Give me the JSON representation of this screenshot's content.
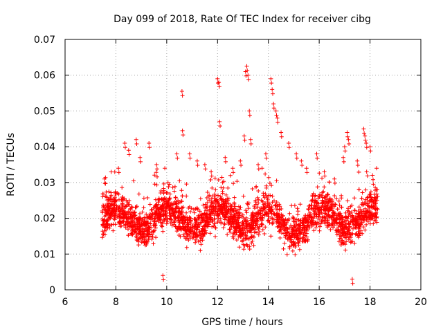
{
  "chart_data": {
    "type": "scatter",
    "title": "Day 099 of 2018, Rate Of TEC Index for receiver cibg",
    "xlabel": "GPS time / hours",
    "ylabel": "ROTI / TECUs",
    "xlim": [
      6,
      20
    ],
    "ylim": [
      0,
      0.07
    ],
    "xticks": [
      "6",
      "8",
      "10",
      "12",
      "14",
      "16",
      "18",
      "20"
    ],
    "yticks": [
      "0",
      "0.01",
      "0.02",
      "0.03",
      "0.04",
      "0.05",
      "0.06",
      "0.07"
    ],
    "grid": true,
    "marker": "+",
    "color": "#ff0000",
    "data_x_range": [
      7.45,
      18.3
    ],
    "typical_band": [
      0.008,
      0.03
    ],
    "notable_points": [
      {
        "x": 7.55,
        "y": 0.031
      },
      {
        "x": 8.1,
        "y": 0.034
      },
      {
        "x": 8.35,
        "y": 0.041
      },
      {
        "x": 8.5,
        "y": 0.039
      },
      {
        "x": 8.8,
        "y": 0.042
      },
      {
        "x": 8.95,
        "y": 0.037
      },
      {
        "x": 9.3,
        "y": 0.041
      },
      {
        "x": 9.6,
        "y": 0.035
      },
      {
        "x": 9.85,
        "y": 0.004
      },
      {
        "x": 10.05,
        "y": 0.03
      },
      {
        "x": 10.4,
        "y": 0.038
      },
      {
        "x": 10.6,
        "y": 0.0555
      },
      {
        "x": 10.62,
        "y": 0.0445
      },
      {
        "x": 10.9,
        "y": 0.038
      },
      {
        "x": 11.2,
        "y": 0.036
      },
      {
        "x": 11.5,
        "y": 0.035
      },
      {
        "x": 11.75,
        "y": 0.033
      },
      {
        "x": 12.0,
        "y": 0.059
      },
      {
        "x": 12.05,
        "y": 0.058
      },
      {
        "x": 12.08,
        "y": 0.047
      },
      {
        "x": 12.3,
        "y": 0.037
      },
      {
        "x": 12.6,
        "y": 0.034
      },
      {
        "x": 12.9,
        "y": 0.036
      },
      {
        "x": 13.05,
        "y": 0.043
      },
      {
        "x": 13.1,
        "y": 0.061
      },
      {
        "x": 13.15,
        "y": 0.0625
      },
      {
        "x": 13.2,
        "y": 0.06
      },
      {
        "x": 13.25,
        "y": 0.05
      },
      {
        "x": 13.3,
        "y": 0.042
      },
      {
        "x": 13.6,
        "y": 0.035
      },
      {
        "x": 13.9,
        "y": 0.038
      },
      {
        "x": 14.1,
        "y": 0.059
      },
      {
        "x": 14.15,
        "y": 0.056
      },
      {
        "x": 14.2,
        "y": 0.052
      },
      {
        "x": 14.3,
        "y": 0.05
      },
      {
        "x": 14.35,
        "y": 0.048
      },
      {
        "x": 14.5,
        "y": 0.044
      },
      {
        "x": 14.8,
        "y": 0.041
      },
      {
        "x": 15.1,
        "y": 0.038
      },
      {
        "x": 15.3,
        "y": 0.036
      },
      {
        "x": 15.5,
        "y": 0.034
      },
      {
        "x": 15.9,
        "y": 0.038
      },
      {
        "x": 16.2,
        "y": 0.033
      },
      {
        "x": 16.6,
        "y": 0.031
      },
      {
        "x": 16.95,
        "y": 0.037
      },
      {
        "x": 17.0,
        "y": 0.04
      },
      {
        "x": 17.1,
        "y": 0.044
      },
      {
        "x": 17.15,
        "y": 0.042
      },
      {
        "x": 17.3,
        "y": 0.003
      },
      {
        "x": 17.5,
        "y": 0.036
      },
      {
        "x": 17.75,
        "y": 0.045
      },
      {
        "x": 17.8,
        "y": 0.043
      },
      {
        "x": 17.85,
        "y": 0.041
      },
      {
        "x": 18.0,
        "y": 0.04
      },
      {
        "x": 18.1,
        "y": 0.032
      },
      {
        "x": 18.25,
        "y": 0.028
      }
    ]
  }
}
